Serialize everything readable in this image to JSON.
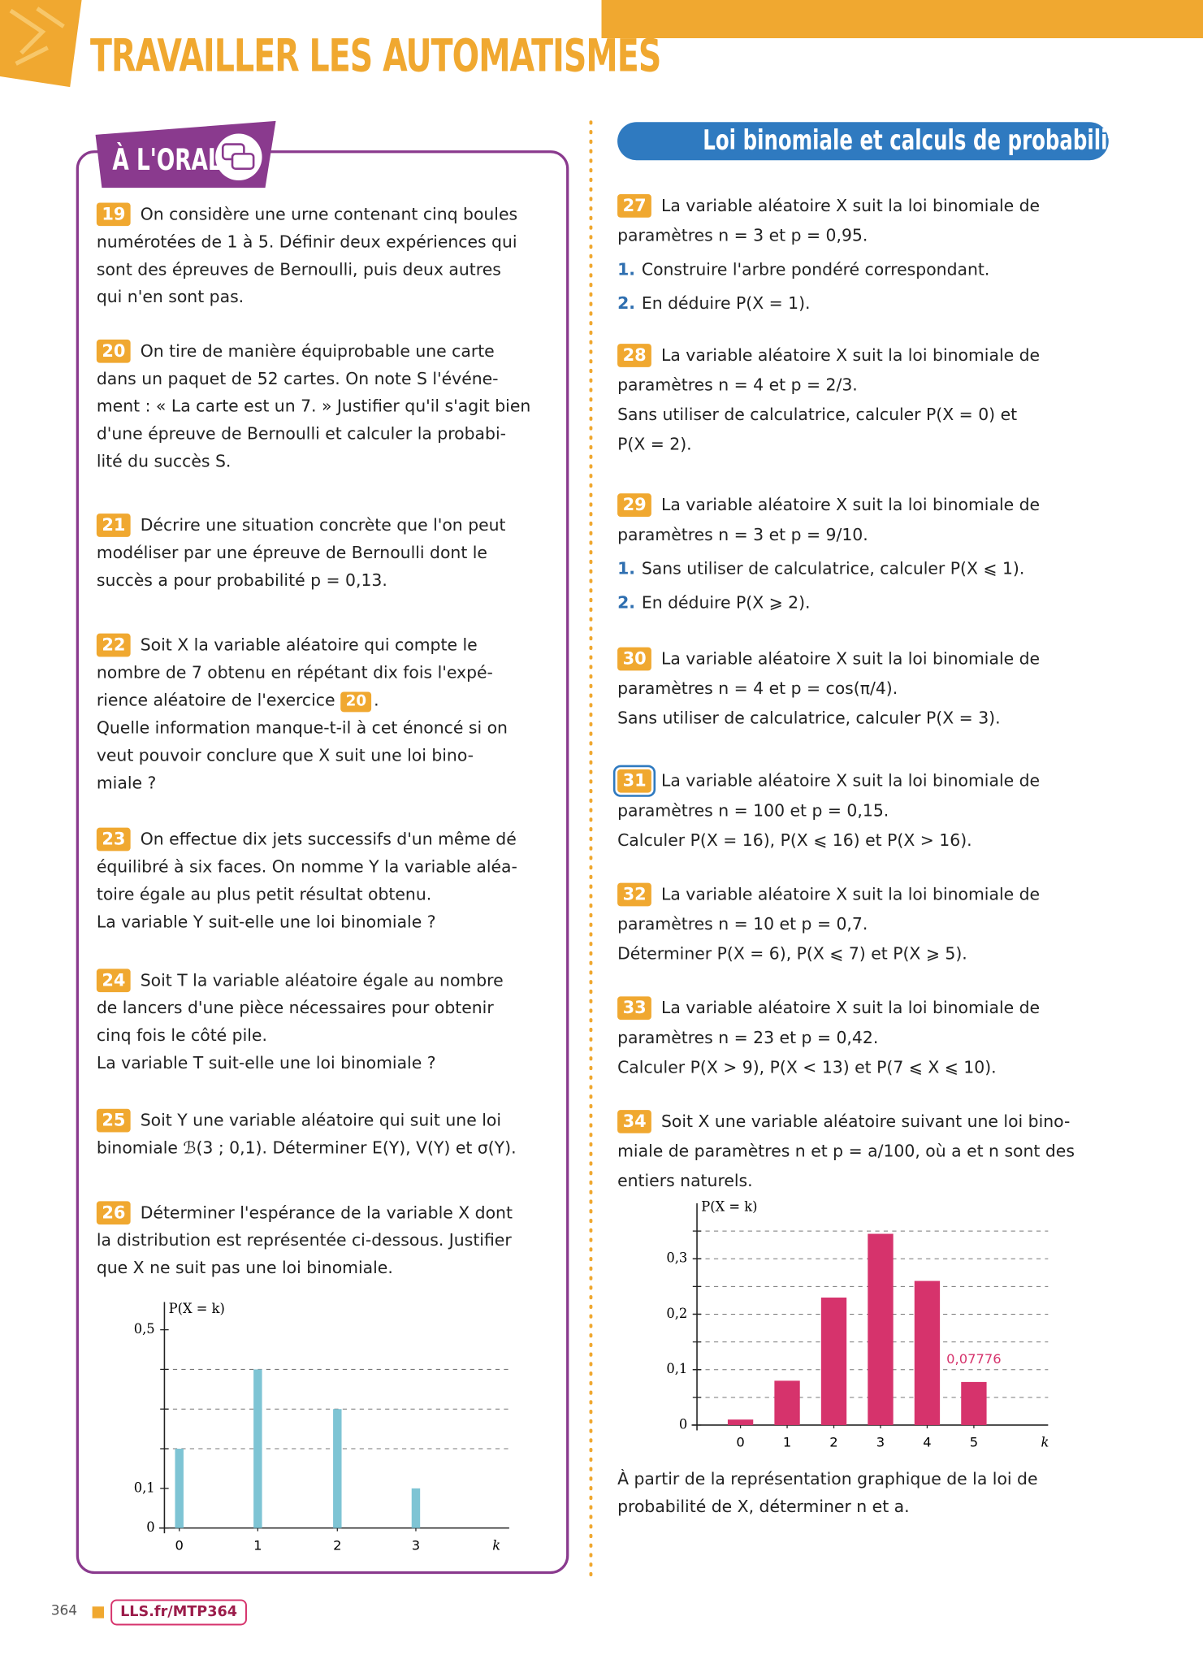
{
  "header": {
    "title": "TRAVAILLER LES AUTOMATISMES"
  },
  "oral_section": {
    "label": "À L'ORAL",
    "exercises": [
      {
        "number": "19",
        "lines": [
          "On considère une urne contenant cinq boules",
          "numérotées de 1 à 5. Définir deux expériences qui",
          "sont des épreuves de Bernoulli, puis deux autres",
          "qui n'en sont pas."
        ]
      },
      {
        "number": "20",
        "lines": [
          "On tire de manière équiprobable une carte",
          "dans un paquet de 52 cartes. On note S l'événe-",
          "ment : « La carte est un 7. » Justifier qu'il s'agit bien",
          "d'une épreuve de Bernoulli et calculer la probabi-",
          "lité du succès S."
        ]
      },
      {
        "number": "21",
        "lines": [
          "Décrire une situation concrète que l'on peut",
          "modéliser par une épreuve de Bernoulli dont le",
          "succès a pour probabilité p = 0,13."
        ]
      },
      {
        "number": "22",
        "lines": [
          "Soit X la variable aléatoire qui compte le",
          "nombre de 7 obtenu en répétant dix fois l'expé-",
          {
            "text": "rience aléatoire de l'exercice",
            "ref": "20",
            "after": "."
          },
          "Quelle information manque-t-il à cet énoncé si on",
          "veut pouvoir conclure que X suit une loi bino-",
          "miale ?"
        ]
      },
      {
        "number": "23",
        "lines": [
          "On effectue dix jets successifs d'un même dé",
          "équilibré à six faces. On nomme Y la variable aléa-",
          "toire égale au plus petit résultat obtenu.",
          "La variable Y suit-elle une loi binomiale ?"
        ]
      },
      {
        "number": "24",
        "lines": [
          "Soit T la variable aléatoire égale au nombre",
          "de lancers d'une pièce nécessaires pour obtenir",
          "cinq fois le côté pile.",
          "La variable T suit-elle une loi binomiale ?"
        ]
      },
      {
        "number": "25",
        "lines": [
          "Soit Y une variable aléatoire qui suit une loi",
          "binomiale ℬ(3 ; 0,1). Déterminer E(Y), V(Y) et σ(Y)."
        ]
      },
      {
        "number": "26",
        "lines": [
          "Déterminer l'espérance de la variable X dont",
          "la distribution est représentée ci-dessous. Justifier",
          "que X ne suit pas une loi binomiale."
        ]
      }
    ]
  },
  "right_section": {
    "title": "Loi binomiale et calculs de probabilités",
    "exercises": [
      {
        "number": "27",
        "lines": [
          "La variable aléatoire X suit la loi binomiale de",
          "paramètres n = 3 et p = 0,95.",
          {
            "label": "1.",
            "text": "Construire l'arbre pondéré correspondant."
          },
          {
            "label": "2.",
            "text": "En déduire P(X = 1)."
          }
        ]
      },
      {
        "number": "28",
        "lines": [
          "La variable aléatoire X suit la loi binomiale de",
          "paramètres n = 4 et p = 2/3.",
          "Sans utiliser de calculatrice, calculer P(X = 0) et",
          "P(X = 2)."
        ]
      },
      {
        "number": "29",
        "lines": [
          "La variable aléatoire X suit la loi binomiale de",
          "paramètres n = 3 et p = 9/10.",
          {
            "label": "1.",
            "text": "Sans utiliser de calculatrice, calculer P(X ⩽ 1)."
          },
          {
            "label": "2.",
            "text": "En déduire P(X ⩾ 2)."
          }
        ]
      },
      {
        "number": "30",
        "lines": [
          "La variable aléatoire X suit la loi binomiale de",
          "paramètres n = 4 et p = cos(π/4).",
          "Sans utiliser de calculatrice, calculer P(X = 3)."
        ]
      },
      {
        "number": "31",
        "outlined": true,
        "lines": [
          "La variable aléatoire X suit la loi binomiale de",
          "paramètres n = 100 et p = 0,15.",
          "Calculer P(X = 16), P(X ⩽ 16) et P(X > 16)."
        ]
      },
      {
        "number": "32",
        "lines": [
          "La variable aléatoire X suit la loi binomiale de",
          "paramètres n = 10 et p = 0,7.",
          "Déterminer P(X = 6), P(X ⩽ 7) et P(X ⩾ 5)."
        ]
      },
      {
        "number": "33",
        "lines": [
          "La variable aléatoire X suit la loi binomiale de",
          "paramètres n = 23 et p = 0,42.",
          "Calculer P(X > 9), P(X < 13) et P(7 ⩽ X ⩽ 10)."
        ]
      },
      {
        "number": "34",
        "lines": [
          "Soit X une variable aléatoire suivant une loi bino-",
          "miale de paramètres n et p = a/100, où a et n sont des",
          "entiers naturels."
        ],
        "conclusion": [
          "À partir de la représentation graphique de la loi de",
          "probabilité de X, déterminer n et a."
        ]
      }
    ]
  },
  "chart_data": [
    {
      "type": "bar",
      "y_label": "P(X = k)",
      "x_label": "k",
      "categories": [
        "0",
        "1",
        "2",
        "3"
      ],
      "values": [
        0.2,
        0.4,
        0.3,
        0.1
      ],
      "color": "#7ec4d4",
      "ylim": [
        0,
        0.57
      ],
      "yticks": [
        0,
        {
          "value": 0.1,
          "label": "0,1"
        },
        {
          "value": 0.5,
          "label": "0,5"
        }
      ],
      "ygrid": [
        0.2,
        0.3,
        0.4
      ]
    },
    {
      "type": "bar",
      "y_label": "P(X = k)",
      "x_label": "k",
      "categories": [
        "0",
        "1",
        "2",
        "3",
        "4",
        "5"
      ],
      "values": [
        0.01,
        0.08,
        0.23,
        0.345,
        0.26,
        0.07776
      ],
      "value_labels": [
        null,
        null,
        null,
        null,
        null,
        "0,07776"
      ],
      "color": "#d6336c",
      "ylim": [
        0,
        0.4
      ],
      "yticks": [
        0,
        {
          "value": 0.1,
          "label": "0,1"
        },
        {
          "value": 0.2,
          "label": "0,2"
        },
        {
          "value": 0.3,
          "label": "0,3"
        }
      ],
      "ygrid": [
        0.05,
        0.1,
        0.15,
        0.2,
        0.25,
        0.3,
        0.35
      ]
    }
  ],
  "footer": {
    "page": "364",
    "link": "LLS.fr/MTP364"
  }
}
